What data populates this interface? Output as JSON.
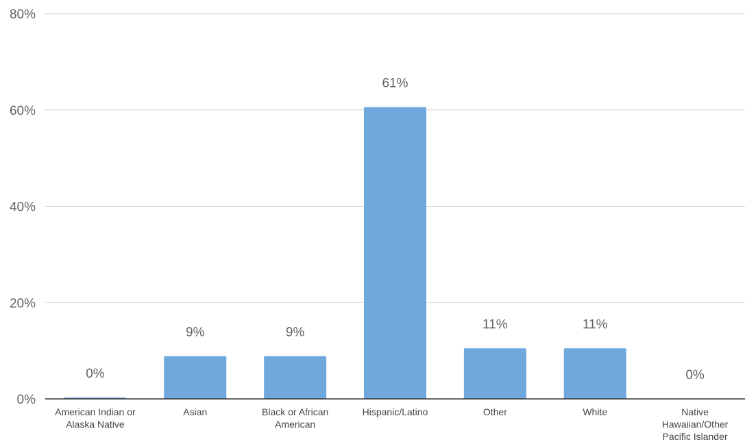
{
  "chart_data": {
    "type": "bar",
    "categories": [
      "American Indian or Alaska Native",
      "Asian",
      "Black or African American",
      "Hispanic/Latino",
      "Other",
      "White",
      "Native Hawaiian/Other Pacific Islander"
    ],
    "category_label_lines": [
      [
        "American Indian or",
        "Alaska Native"
      ],
      [
        "Asian"
      ],
      [
        "Black or African",
        "American"
      ],
      [
        "Hispanic/Latino"
      ],
      [
        "Other"
      ],
      [
        "White"
      ],
      [
        "Native",
        "Hawaiian/Other",
        "Pacific Islander"
      ]
    ],
    "values": [
      0.3,
      8.9,
      8.9,
      60.6,
      10.5,
      10.5,
      0
    ],
    "data_labels": [
      "0%",
      "9%",
      "9%",
      "61%",
      "11%",
      "11%",
      "0%"
    ],
    "y_ticks": [
      0,
      20,
      40,
      60,
      80
    ],
    "y_tick_labels": [
      "0%",
      "20%",
      "40%",
      "60%",
      "80%"
    ],
    "ylim": [
      0,
      80
    ],
    "title": "",
    "xlabel": "",
    "ylabel": "",
    "grid": true,
    "legend": "none",
    "bar_color": "#6fa8dc",
    "grid_color": "#cccccc",
    "axis_color": "#333333"
  }
}
